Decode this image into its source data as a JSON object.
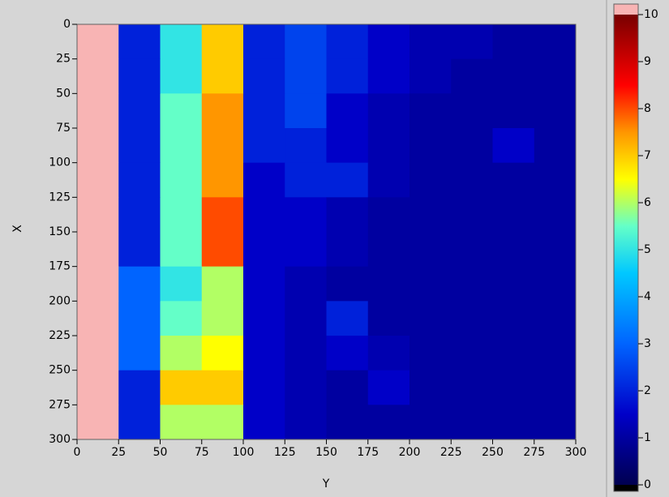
{
  "chart_data": {
    "type": "heatmap",
    "x_label": "Y",
    "y_label": "X",
    "x_bins": [
      0,
      25,
      50,
      75,
      100,
      125,
      150,
      175,
      200,
      225,
      250,
      275,
      300
    ],
    "y_bins": [
      0,
      25,
      50,
      75,
      100,
      125,
      150,
      175,
      200,
      225,
      250,
      275,
      300
    ],
    "z": [
      [
        11,
        2,
        5,
        7,
        2,
        2.5,
        2,
        1.5,
        1.2,
        1.2,
        1,
        1
      ],
      [
        11,
        2,
        5,
        7,
        2,
        2.5,
        2,
        1.5,
        1.2,
        1,
        1,
        1
      ],
      [
        11,
        2,
        5.5,
        7.5,
        2,
        2.5,
        1.5,
        1.2,
        1,
        1,
        1,
        1
      ],
      [
        11,
        2,
        5.5,
        7.5,
        2,
        2,
        1.5,
        1.2,
        1,
        1,
        1.5,
        1
      ],
      [
        11,
        2,
        5.5,
        7.5,
        1.5,
        2,
        2,
        1.2,
        1,
        1,
        1,
        1
      ],
      [
        11,
        2,
        5.5,
        8,
        1.5,
        1.5,
        1.2,
        1,
        1,
        1,
        1,
        1
      ],
      [
        11,
        2,
        5.5,
        8,
        1.5,
        1.5,
        1.2,
        1,
        1,
        1,
        1,
        1
      ],
      [
        11,
        3,
        5,
        6,
        1.5,
        1.2,
        1,
        1,
        1,
        1,
        1,
        1
      ],
      [
        11,
        3,
        5.5,
        6,
        1.5,
        1.2,
        2,
        1,
        1,
        1,
        1,
        1
      ],
      [
        11,
        3,
        6,
        6.5,
        1.5,
        1.2,
        1.5,
        1.2,
        1,
        1,
        1,
        1
      ],
      [
        11,
        2,
        7,
        7,
        1.5,
        1.2,
        1,
        1.5,
        1,
        1,
        1,
        1
      ],
      [
        11,
        2,
        6,
        6,
        1.5,
        1.2,
        1,
        1,
        1,
        1,
        1,
        1
      ]
    ],
    "xlim": [
      0,
      300
    ],
    "ylim": [
      0,
      300
    ],
    "y_reversed": true,
    "xticks": [
      0,
      25,
      50,
      75,
      100,
      125,
      150,
      175,
      200,
      225,
      250,
      275,
      300
    ],
    "yticks": [
      0,
      25,
      50,
      75,
      100,
      125,
      150,
      175,
      200,
      225,
      250,
      275,
      300
    ],
    "zlim": [
      0,
      10
    ],
    "zticks": [
      0,
      1,
      2,
      3,
      4,
      5,
      6,
      7,
      8,
      9,
      10
    ],
    "colorscale": [
      [
        0,
        "#000050"
      ],
      [
        1.5,
        "#0000c8"
      ],
      [
        3,
        "#0064ff"
      ],
      [
        4.5,
        "#00c8ff"
      ],
      [
        5.5,
        "#64ffc8"
      ],
      [
        6.5,
        "#ffff00"
      ],
      [
        7.5,
        "#ff9600"
      ],
      [
        8.5,
        "#ff0000"
      ],
      [
        10,
        "#780000"
      ]
    ],
    "above_color": "#f8b4b4",
    "below_color": "#000000"
  }
}
